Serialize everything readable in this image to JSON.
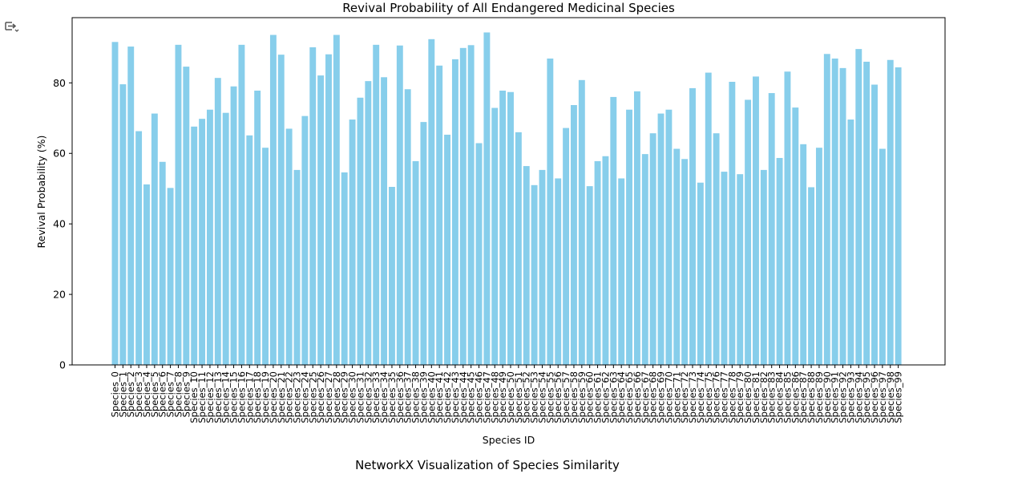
{
  "output_icon": "output-toggle-icon",
  "next_figure_title": "NetworkX Visualization of Species Similarity",
  "chart_data": {
    "type": "bar",
    "title": "Revival Probability of All Endangered Medicinal Species",
    "xlabel": "Species ID",
    "ylabel": "Revival Probability (%)",
    "ylim": [
      0,
      98.5
    ],
    "yticks": [
      0,
      20,
      40,
      60,
      80
    ],
    "bar_color": "#87ceeb",
    "categories": [
      "Species_0",
      "Species_1",
      "Species_2",
      "Species_3",
      "Species_4",
      "Species_5",
      "Species_6",
      "Species_7",
      "Species_8",
      "Species_9",
      "Species_10",
      "Species_11",
      "Species_12",
      "Species_13",
      "Species_14",
      "Species_15",
      "Species_16",
      "Species_17",
      "Species_18",
      "Species_19",
      "Species_20",
      "Species_21",
      "Species_22",
      "Species_23",
      "Species_24",
      "Species_25",
      "Species_26",
      "Species_27",
      "Species_28",
      "Species_29",
      "Species_30",
      "Species_31",
      "Species_32",
      "Species_33",
      "Species_34",
      "Species_35",
      "Species_36",
      "Species_37",
      "Species_38",
      "Species_39",
      "Species_40",
      "Species_41",
      "Species_42",
      "Species_43",
      "Species_44",
      "Species_45",
      "Species_46",
      "Species_47",
      "Species_48",
      "Species_49",
      "Species_50",
      "Species_51",
      "Species_52",
      "Species_53",
      "Species_54",
      "Species_55",
      "Species_56",
      "Species_57",
      "Species_58",
      "Species_59",
      "Species_60",
      "Species_61",
      "Species_62",
      "Species_63",
      "Species_64",
      "Species_65",
      "Species_66",
      "Species_67",
      "Species_68",
      "Species_69",
      "Species_70",
      "Species_71",
      "Species_72",
      "Species_73",
      "Species_74",
      "Species_75",
      "Species_76",
      "Species_77",
      "Species_78",
      "Species_79",
      "Species_80",
      "Species_81",
      "Species_82",
      "Species_83",
      "Species_84",
      "Species_85",
      "Species_86",
      "Species_87",
      "Species_88",
      "Species_89",
      "Species_90",
      "Species_91",
      "Species_92",
      "Species_93",
      "Species_94",
      "Species_95",
      "Species_96",
      "Species_97",
      "Species_98",
      "Species_99"
    ],
    "values": [
      91.6,
      79.6,
      90.3,
      66.3,
      51.2,
      71.3,
      57.6,
      50.2,
      90.8,
      84.6,
      67.6,
      69.8,
      72.4,
      81.4,
      71.5,
      79.0,
      90.8,
      65.1,
      77.8,
      61.6,
      93.6,
      88.0,
      67.0,
      55.3,
      70.6,
      90.1,
      82.1,
      88.1,
      93.6,
      54.6,
      69.6,
      75.8,
      80.5,
      90.8,
      81.6,
      50.5,
      90.6,
      78.2,
      57.8,
      68.9,
      92.4,
      84.9,
      65.3,
      86.7,
      89.9,
      90.7,
      62.9,
      94.3,
      72.9,
      77.8,
      77.4,
      66.0,
      56.4,
      51.0,
      55.3,
      86.9,
      52.9,
      67.2,
      73.7,
      80.8,
      50.7,
      57.8,
      59.2,
      76.0,
      52.9,
      72.4,
      77.6,
      59.8,
      65.7,
      71.3,
      72.4,
      61.3,
      58.4,
      78.5,
      51.7,
      82.9,
      65.7,
      54.8,
      80.3,
      54.1,
      75.2,
      81.8,
      55.3,
      77.1,
      58.7,
      83.2,
      73.0,
      62.6,
      50.4,
      61.6,
      88.2,
      86.9,
      84.2,
      69.6,
      89.6,
      86.0,
      79.5,
      61.3,
      86.5,
      84.4
    ]
  }
}
